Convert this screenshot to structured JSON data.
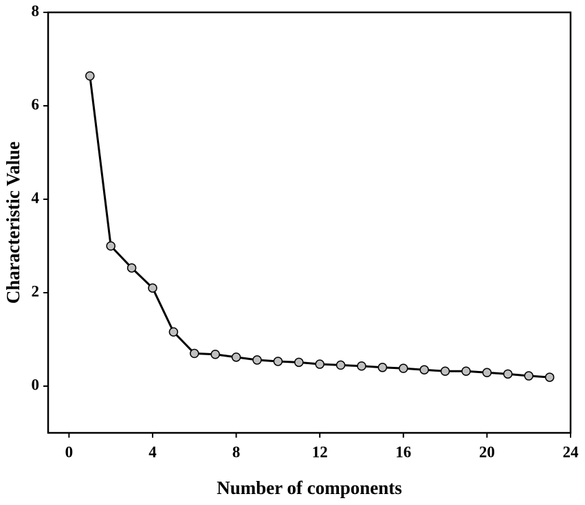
{
  "chart_data": {
    "type": "line",
    "x_label": "Number of components",
    "y_label": "Characteristic Value",
    "x": [
      1,
      2,
      3,
      4,
      5,
      6,
      7,
      8,
      9,
      10,
      11,
      12,
      13,
      14,
      15,
      16,
      17,
      18,
      19,
      20,
      21,
      22,
      23
    ],
    "values": [
      6.64,
      3.0,
      2.53,
      2.1,
      1.16,
      0.7,
      0.68,
      0.62,
      0.56,
      0.53,
      0.51,
      0.47,
      0.45,
      0.43,
      0.4,
      0.38,
      0.35,
      0.32,
      0.32,
      0.29,
      0.26,
      0.22,
      0.19
    ],
    "color": "#000000",
    "marker_color": "#c0c0c0",
    "xlim": [
      -1,
      24
    ],
    "xticks": [
      0,
      4,
      8,
      12,
      16,
      20,
      24
    ],
    "ylim": [
      -1,
      8
    ],
    "yticks": [
      0,
      2,
      4,
      6,
      8
    ],
    "grid": false
  }
}
